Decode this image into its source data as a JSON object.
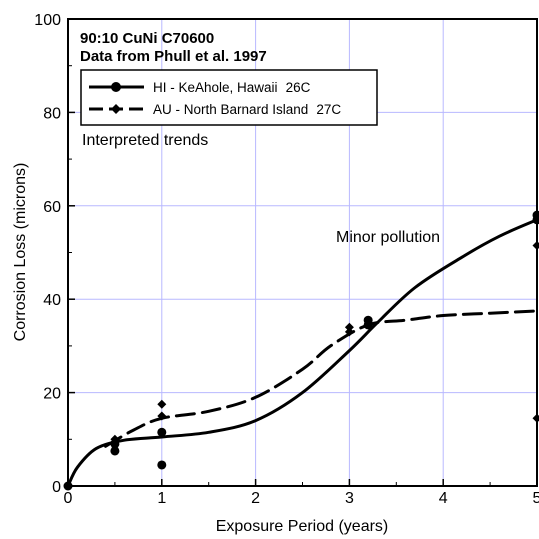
{
  "chart_data": {
    "type": "scatter",
    "title": "90:10 CuNi C70600",
    "subtitle": "Data from Phull et al. 1997",
    "xlabel": "Exposure Period (years)",
    "ylabel": "Corrosion Loss (microns)",
    "xlim": [
      0,
      5
    ],
    "ylim": [
      0,
      100
    ],
    "xticks": [
      "0",
      "1",
      "2",
      "3",
      "4",
      "5"
    ],
    "yticks": [
      "0",
      "20",
      "40",
      "60",
      "80",
      "100"
    ],
    "grid": true,
    "legend_position": "top-left",
    "annotations": [
      "Interpreted trends",
      "Minor pollution"
    ],
    "series": [
      {
        "name": "HI - KeAhole, Hawaii",
        "legend_suffix": "26C",
        "marker": "circle",
        "line_style": "solid",
        "color": "#000000",
        "points": [
          [
            0,
            0
          ],
          [
            0.5,
            7.5
          ],
          [
            0.5,
            9
          ],
          [
            1,
            11.5
          ],
          [
            1,
            4.5
          ],
          [
            3.2,
            35.5
          ],
          [
            3.2,
            34.5
          ],
          [
            5,
            58
          ],
          [
            5,
            57
          ]
        ],
        "trend": [
          [
            0,
            0
          ],
          [
            0.1,
            4
          ],
          [
            0.3,
            8
          ],
          [
            0.6,
            9.8
          ],
          [
            1,
            10.5
          ],
          [
            1.5,
            11.5
          ],
          [
            2,
            14
          ],
          [
            2.5,
            20
          ],
          [
            3,
            29
          ],
          [
            3.3,
            35
          ],
          [
            3.7,
            42.5
          ],
          [
            4.2,
            49
          ],
          [
            4.6,
            53.5
          ],
          [
            5,
            57
          ]
        ]
      },
      {
        "name": "AU - North Barnard Island",
        "legend_suffix": "27C",
        "marker": "diamond",
        "line_style": "dashed",
        "color": "#000000",
        "points": [
          [
            0.5,
            10
          ],
          [
            1,
            17.5
          ],
          [
            1,
            15
          ],
          [
            3,
            34
          ],
          [
            3,
            33
          ],
          [
            5,
            51.5
          ],
          [
            5,
            14.5
          ]
        ],
        "trend": [
          [
            0.4,
            8.5
          ],
          [
            0.7,
            12
          ],
          [
            1,
            14.5
          ],
          [
            1.5,
            16
          ],
          [
            2,
            19
          ],
          [
            2.5,
            25
          ],
          [
            2.8,
            30
          ],
          [
            3.2,
            34.5
          ],
          [
            3.6,
            35.5
          ],
          [
            4,
            36.5
          ],
          [
            4.5,
            37
          ],
          [
            5,
            37.5
          ]
        ]
      }
    ]
  }
}
